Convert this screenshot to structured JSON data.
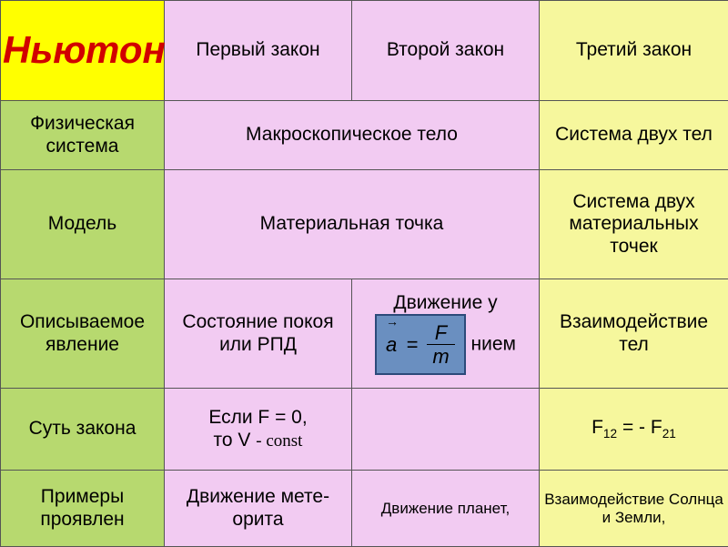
{
  "colors": {
    "title_bg": "#ffff00",
    "title_fg": "#d10000",
    "green": "#b7d96f",
    "pink": "#f2cbf2",
    "yellow": "#f6f79d",
    "border": "#555555",
    "formula_bg": "#6a8fc0",
    "formula_border": "#2c4a7a"
  },
  "table": {
    "title": "Ньютон",
    "header": {
      "law1": "Первый закон",
      "law2": "Второй закон",
      "law3": "Третий закон"
    },
    "rows": {
      "system": {
        "label": "Физическая система",
        "law12": "Макроскопическое тело",
        "law3": "Система двух тел"
      },
      "model": {
        "label": "Модель",
        "law12": "Материальная точка",
        "law3": "Система двух материальных точек"
      },
      "phenomenon": {
        "label": "Описываемое явление",
        "law1": "Состояние покоя или РПД",
        "law2_pre": "Движение у",
        "law2_post": "нием",
        "law3": "Взаимодействие тел",
        "formula": {
          "a": "a",
          "arrow": "→",
          "F": "F",
          "m": "m"
        }
      },
      "essence": {
        "label": "Суть закона",
        "law1_line1": "Если F = 0,",
        "law1_line2a": "то  V ",
        "law1_line2b": "- const",
        "law3_pre": "F",
        "law3_s1": "12",
        "law3_mid": "  =  - F",
        "law3_s2": "21"
      },
      "examples": {
        "label": "Примеры проявлен",
        "law1": "Движение мете-орита",
        "law2": "Движение планет,",
        "law3": "Взаимодействие Солнца и Земли,"
      }
    }
  }
}
